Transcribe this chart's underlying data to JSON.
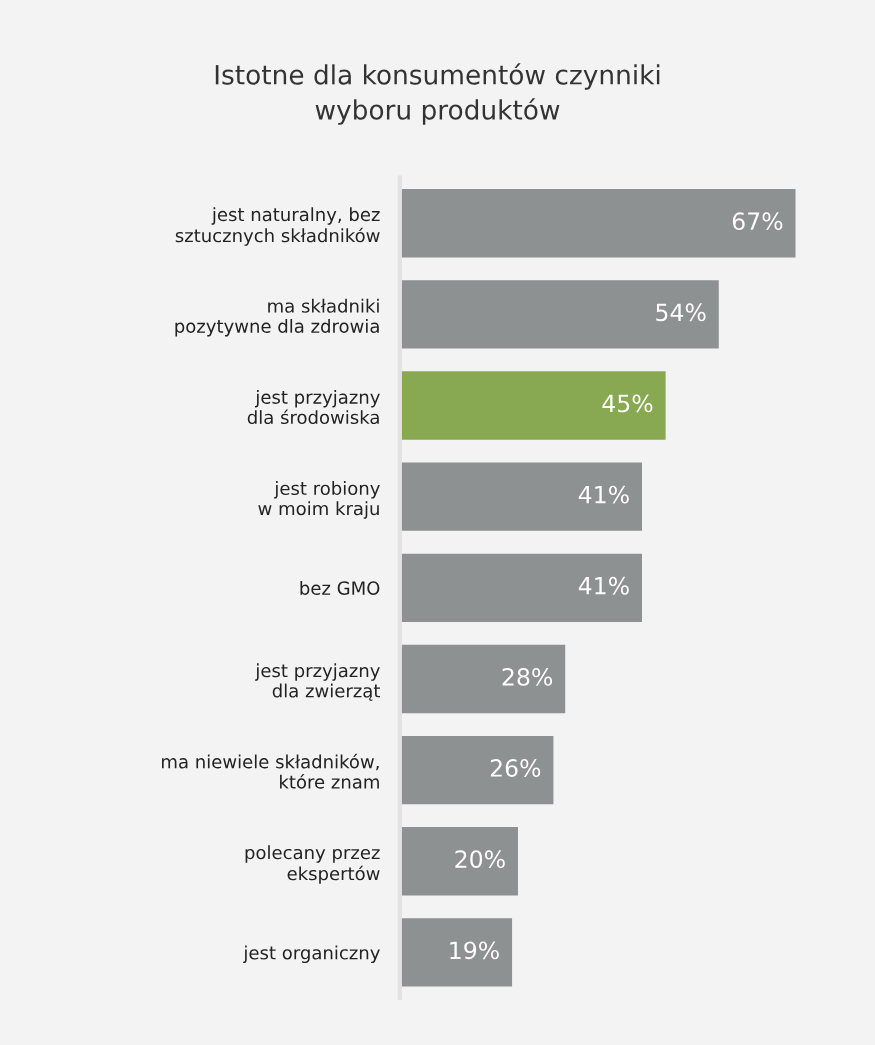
{
  "chart_data": {
    "type": "bar",
    "orientation": "horizontal",
    "title": "Istotne dla konsumentów czynniki\nwyboru produktów",
    "categories": [
      "jest naturalny, bez\nsztucznych składników",
      "ma składniki\npozytywne dla zdrowia",
      "jest przyjazny\ndla środowiska",
      "jest robiony\nw moim kraju",
      "bez GMO",
      "jest przyjazny\ndla zwierząt",
      "ma niewiele składników,\nktóre znam",
      "polecany przez\nekspertów",
      "jest organiczny"
    ],
    "values": [
      67,
      54,
      45,
      41,
      41,
      28,
      26,
      20,
      19
    ],
    "colors": [
      "#8e9191",
      "#8e9191",
      "#8cb843",
      "#8e9191",
      "#8e9191",
      "#8e9191",
      "#8e9191",
      "#8e9191",
      "#8e9191"
    ],
    "value_labels": [
      "67%",
      "54%",
      "45%",
      "41%",
      "41%",
      "28%",
      "26%",
      "20%",
      "19%"
    ],
    "tick_labels": "y",
    "grid": false,
    "legend": false
  }
}
